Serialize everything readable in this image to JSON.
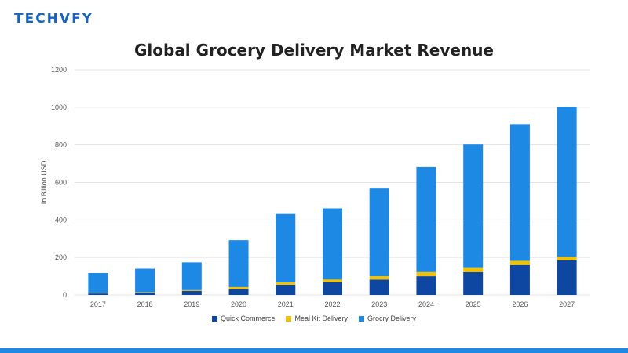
{
  "brand": {
    "logo_text": "TECHVFY"
  },
  "colors": {
    "quick_commerce": "#0d47a1",
    "meal_kit": "#f2c200",
    "grocery": "#1e88e5",
    "bottom_bar": "#1e88e5",
    "gridline": "#e3e3e3"
  },
  "chart_data": {
    "type": "bar",
    "stacked": true,
    "title": "Global Grocery Delivery Market Revenue",
    "xlabel": "",
    "ylabel": "In Billion USD",
    "ylim": [
      0,
      1200
    ],
    "yticks": [
      0,
      200,
      400,
      600,
      800,
      1000,
      1200
    ],
    "grid": true,
    "legend_position": "bottom",
    "categories": [
      "2017",
      "2018",
      "2019",
      "2020",
      "2021",
      "2022",
      "2023",
      "2024",
      "2025",
      "2026",
      "2027"
    ],
    "series": [
      {
        "name": "Quick Commerce",
        "values": [
          8,
          12,
          22,
          32,
          55,
          68,
          82,
          100,
          122,
          160,
          185
        ]
      },
      {
        "name": "Meal Kit Delivery",
        "values": [
          2,
          3,
          4,
          10,
          12,
          14,
          18,
          22,
          22,
          22,
          18
        ]
      },
      {
        "name": "Grocry Delivery",
        "values": [
          107,
          125,
          148,
          250,
          365,
          380,
          468,
          560,
          658,
          728,
          800
        ]
      }
    ]
  }
}
